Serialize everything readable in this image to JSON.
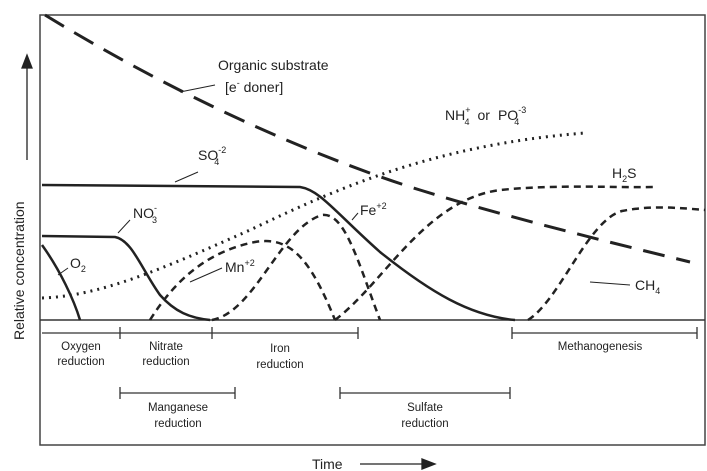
{
  "axes": {
    "y_label": "Relative concentration",
    "x_label": "Time"
  },
  "curve_labels": {
    "organic_substrate": {
      "line1": "Organic substrate",
      "line2_pre": "[e",
      "line2_sup": "-",
      "line2_post": " doner]"
    },
    "nh4_po4": {
      "a": "NH",
      "a_sub": "4",
      "a_sup": "+",
      "or": "or",
      "b": "PO",
      "b_sub": "4",
      "b_sup": "-3"
    },
    "so4": {
      "base": "SO",
      "sub": "4",
      "sup": "-2"
    },
    "h2s": {
      "a": "H",
      "sub": "2",
      "b": "S"
    },
    "no3": {
      "base": "NO",
      "sub": "3",
      "sup": "-"
    },
    "fe": {
      "base": "Fe",
      "sup": "+2"
    },
    "o2": {
      "base": "O",
      "sub": "2"
    },
    "mn": {
      "base": "Mn",
      "sup": "+2"
    },
    "ch4": {
      "base": "CH",
      "sub": "4"
    }
  },
  "zones": {
    "oxygen": [
      "Oxygen",
      "reduction"
    ],
    "nitrate": [
      "Nitrate",
      "reduction"
    ],
    "iron": [
      "Iron",
      "reduction"
    ],
    "methanogenesis": [
      "Methanogenesis"
    ],
    "manganese": [
      "Manganese",
      "reduction"
    ],
    "sulfate": [
      "Sulfate",
      "reduction"
    ]
  }
}
